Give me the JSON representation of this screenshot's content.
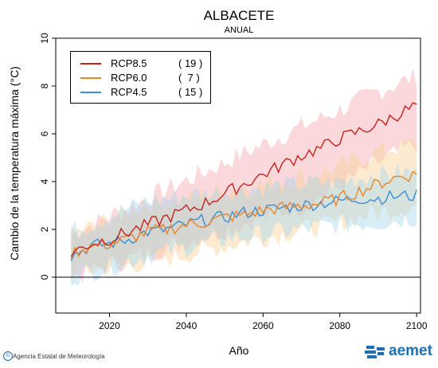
{
  "chart_data": {
    "type": "line",
    "title": "ALBACETE",
    "subtitle": "ANUAL",
    "xlabel": "Año",
    "ylabel": "Cambio de la temperatura máxima (°C)",
    "xlim": [
      2006,
      2101
    ],
    "ylim": [
      -1.5,
      10
    ],
    "xticks": [
      2020,
      2040,
      2060,
      2080,
      2100
    ],
    "yticks": [
      0,
      2,
      4,
      6,
      8,
      10
    ],
    "zero_line": true,
    "legend_position": "top-left",
    "series": [
      {
        "name": "RCP8.5",
        "count": "( 19 )",
        "color": "#c8221c",
        "band_color": "#f4a8b0",
        "anchors": [
          [
            2010,
            1.0
          ],
          [
            2015,
            1.4
          ],
          [
            2020,
            1.6
          ],
          [
            2025,
            1.9
          ],
          [
            2030,
            2.2
          ],
          [
            2035,
            2.5
          ],
          [
            2040,
            2.8
          ],
          [
            2045,
            3.1
          ],
          [
            2050,
            3.5
          ],
          [
            2055,
            3.9
          ],
          [
            2060,
            4.3
          ],
          [
            2065,
            4.7
          ],
          [
            2070,
            5.1
          ],
          [
            2075,
            5.4
          ],
          [
            2080,
            5.8
          ],
          [
            2085,
            6.1
          ],
          [
            2090,
            6.4
          ],
          [
            2095,
            6.8
          ],
          [
            2100,
            7.2
          ]
        ],
        "band_low": [
          [
            2010,
            0.0
          ],
          [
            2030,
            1.0
          ],
          [
            2050,
            2.0
          ],
          [
            2070,
            3.0
          ],
          [
            2080,
            3.8
          ],
          [
            2090,
            4.8
          ],
          [
            2100,
            5.6
          ]
        ],
        "band_high": [
          [
            2010,
            1.8
          ],
          [
            2030,
            3.3
          ],
          [
            2050,
            4.8
          ],
          [
            2070,
            6.3
          ],
          [
            2080,
            7.0
          ],
          [
            2090,
            7.8
          ],
          [
            2100,
            8.4
          ]
        ]
      },
      {
        "name": "RCP6.0",
        "count": "(  7 )",
        "color": "#e8862a",
        "band_color": "#f9d29a",
        "anchors": [
          [
            2010,
            1.0
          ],
          [
            2015,
            1.3
          ],
          [
            2020,
            1.4
          ],
          [
            2025,
            1.6
          ],
          [
            2030,
            1.9
          ],
          [
            2035,
            2.0
          ],
          [
            2040,
            2.2
          ],
          [
            2045,
            2.3
          ],
          [
            2050,
            2.5
          ],
          [
            2055,
            2.6
          ],
          [
            2060,
            2.8
          ],
          [
            2065,
            2.9
          ],
          [
            2070,
            3.0
          ],
          [
            2075,
            3.1
          ],
          [
            2080,
            3.3
          ],
          [
            2085,
            3.6
          ],
          [
            2090,
            3.9
          ],
          [
            2095,
            4.2
          ],
          [
            2100,
            4.3
          ]
        ],
        "band_low": [
          [
            2010,
            0.2
          ],
          [
            2030,
            0.6
          ],
          [
            2050,
            1.3
          ],
          [
            2070,
            2.0
          ],
          [
            2080,
            2.3
          ],
          [
            2090,
            2.7
          ],
          [
            2100,
            3.0
          ]
        ],
        "band_high": [
          [
            2010,
            1.8
          ],
          [
            2030,
            3.0
          ],
          [
            2050,
            3.6
          ],
          [
            2070,
            4.2
          ],
          [
            2080,
            4.6
          ],
          [
            2090,
            5.3
          ],
          [
            2100,
            5.6
          ]
        ]
      },
      {
        "name": "RCP4.5",
        "count": "( 15 )",
        "color": "#3a8fd6",
        "band_color": "#a8d6ea",
        "anchors": [
          [
            2010,
            0.9
          ],
          [
            2015,
            1.3
          ],
          [
            2020,
            1.4
          ],
          [
            2025,
            1.6
          ],
          [
            2030,
            1.9
          ],
          [
            2035,
            2.0
          ],
          [
            2040,
            2.2
          ],
          [
            2045,
            2.4
          ],
          [
            2050,
            2.5
          ],
          [
            2055,
            2.7
          ],
          [
            2060,
            2.8
          ],
          [
            2065,
            2.9
          ],
          [
            2070,
            3.0
          ],
          [
            2075,
            3.1
          ],
          [
            2080,
            3.2
          ],
          [
            2085,
            3.3
          ],
          [
            2090,
            3.3
          ],
          [
            2095,
            3.4
          ],
          [
            2100,
            3.4
          ]
        ],
        "band_low": [
          [
            2010,
            0.0
          ],
          [
            2030,
            0.9
          ],
          [
            2050,
            1.6
          ],
          [
            2070,
            2.0
          ],
          [
            2080,
            2.2
          ],
          [
            2090,
            2.3
          ],
          [
            2100,
            2.5
          ]
        ],
        "band_high": [
          [
            2010,
            1.9
          ],
          [
            2030,
            3.2
          ],
          [
            2050,
            3.6
          ],
          [
            2070,
            3.9
          ],
          [
            2080,
            4.0
          ],
          [
            2090,
            4.3
          ],
          [
            2100,
            4.4
          ]
        ]
      }
    ]
  },
  "footer": {
    "credit": "Agencia Estatal de Meteorología",
    "credit_icon": "©",
    "logo_text": "aemet",
    "logo_icon": "aemet-logo-icon"
  }
}
